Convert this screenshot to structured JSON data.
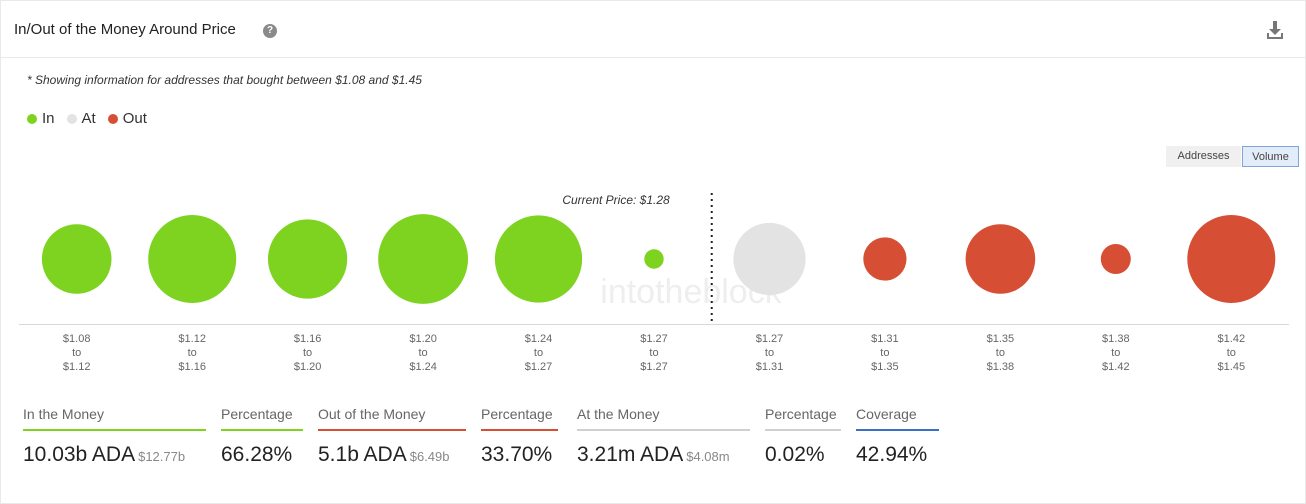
{
  "header": {
    "title": "In/Out of the Money Around Price",
    "help_icon": "?"
  },
  "note": "* Showing information for addresses that bought between $1.08 and $1.45",
  "legend": [
    {
      "label": "In",
      "color": "#7ed321"
    },
    {
      "label": "At",
      "color": "#e3e3e3"
    },
    {
      "label": "Out",
      "color": "#d64f35"
    }
  ],
  "toggle": {
    "addresses": "Addresses",
    "volume": "Volume",
    "active": "Volume"
  },
  "watermark": "intotheblock",
  "chart_data": {
    "type": "bubble",
    "current_price_label": "Current Price: $1.28",
    "current_price_after_index": 5,
    "colors": {
      "In": "#7ed321",
      "At": "#e3e3e3",
      "Out": "#d64f35"
    },
    "buckets": [
      {
        "from": "$1.08",
        "to": "$1.12",
        "status": "In",
        "relative_size": 0.79
      },
      {
        "from": "$1.12",
        "to": "$1.16",
        "status": "In",
        "relative_size": 1.0
      },
      {
        "from": "$1.16",
        "to": "$1.20",
        "status": "In",
        "relative_size": 0.9
      },
      {
        "from": "$1.20",
        "to": "$1.24",
        "status": "In",
        "relative_size": 1.02
      },
      {
        "from": "$1.24",
        "to": "$1.27",
        "status": "In",
        "relative_size": 0.99
      },
      {
        "from": "$1.27",
        "to": "$1.27",
        "status": "In",
        "relative_size": 0.22
      },
      {
        "from": "$1.27",
        "to": "$1.31",
        "status": "At",
        "relative_size": 0.82
      },
      {
        "from": "$1.31",
        "to": "$1.35",
        "status": "Out",
        "relative_size": 0.49
      },
      {
        "from": "$1.35",
        "to": "$1.38",
        "status": "Out",
        "relative_size": 0.79
      },
      {
        "from": "$1.38",
        "to": "$1.42",
        "status": "Out",
        "relative_size": 0.34
      },
      {
        "from": "$1.42",
        "to": "$1.45",
        "status": "Out",
        "relative_size": 1.0
      }
    ],
    "range_separator": "to"
  },
  "stats": [
    {
      "label": "In the Money",
      "value": "10.03b ADA",
      "sub": "$12.77b",
      "color": "#7ed321"
    },
    {
      "label": "Percentage",
      "value": "66.28%",
      "sub": "",
      "color": "#7ed321"
    },
    {
      "label": "Out of the Money",
      "value": "5.1b ADA",
      "sub": "$6.49b",
      "color": "#d64f35"
    },
    {
      "label": "Percentage",
      "value": "33.70%",
      "sub": "",
      "color": "#d64f35"
    },
    {
      "label": "At the Money",
      "value": "3.21m ADA",
      "sub": "$4.08m",
      "color": "#d0d0d0"
    },
    {
      "label": "Percentage",
      "value": "0.02%",
      "sub": "",
      "color": "#d0d0d0"
    },
    {
      "label": "Coverage",
      "value": "42.94%",
      "sub": "",
      "color": "#3d6fc9"
    }
  ]
}
